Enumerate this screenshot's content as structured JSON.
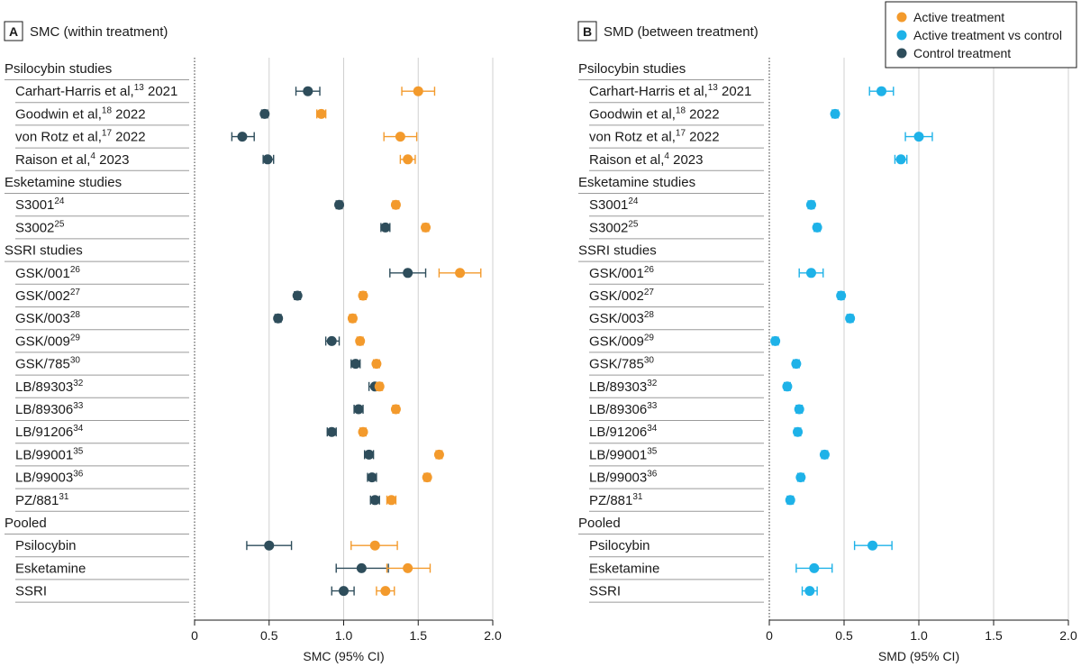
{
  "chart_data": [
    {
      "type": "forest",
      "panel": "A",
      "title": "SMC (within treatment)",
      "xlabel": "SMC (95% CI)",
      "xlim": [
        0,
        2.0
      ],
      "xticks": [
        "0",
        "0.5",
        "1.0",
        "1.5",
        "2.0"
      ],
      "grid": true,
      "series": [
        {
          "name": "Active treatment",
          "color": "#F39A2C"
        },
        {
          "name": "Control treatment",
          "color": "#2E4D5B"
        }
      ],
      "groups": [
        {
          "label": "Psilocybin studies",
          "rows": [
            {
              "label": "Carhart-Harris et al,",
              "sup": "13",
              "suffix": " 2021",
              "active": {
                "est": 1.5,
                "lo": 1.39,
                "hi": 1.61
              },
              "control": {
                "est": 0.76,
                "lo": 0.68,
                "hi": 0.84
              }
            },
            {
              "label": "Goodwin et al,",
              "sup": "18",
              "suffix": " 2022",
              "active": {
                "est": 0.85,
                "lo": 0.82,
                "hi": 0.88
              },
              "control": {
                "est": 0.47,
                "lo": 0.45,
                "hi": 0.49
              }
            },
            {
              "label": "von Rotz et al,",
              "sup": "17",
              "suffix": " 2022",
              "active": {
                "est": 1.38,
                "lo": 1.27,
                "hi": 1.49
              },
              "control": {
                "est": 0.32,
                "lo": 0.25,
                "hi": 0.4
              }
            },
            {
              "label": "Raison et al,",
              "sup": "4",
              "suffix": " 2023",
              "active": {
                "est": 1.43,
                "lo": 1.38,
                "hi": 1.48
              },
              "control": {
                "est": 0.49,
                "lo": 0.46,
                "hi": 0.53
              }
            }
          ]
        },
        {
          "label": "Esketamine studies",
          "rows": [
            {
              "label": "S3001",
              "sup": "24",
              "suffix": "",
              "active": {
                "est": 1.35,
                "lo": 1.33,
                "hi": 1.37
              },
              "control": {
                "est": 0.97,
                "lo": 0.95,
                "hi": 0.99
              }
            },
            {
              "label": "S3002",
              "sup": "25",
              "suffix": "",
              "active": {
                "est": 1.55,
                "lo": 1.53,
                "hi": 1.57
              },
              "control": {
                "est": 1.28,
                "lo": 1.25,
                "hi": 1.31
              }
            }
          ]
        },
        {
          "label": "SSRI studies",
          "rows": [
            {
              "label": "GSK/001",
              "sup": "26",
              "suffix": "",
              "active": {
                "est": 1.78,
                "lo": 1.64,
                "hi": 1.92
              },
              "control": {
                "est": 1.43,
                "lo": 1.31,
                "hi": 1.55
              }
            },
            {
              "label": "GSK/002",
              "sup": "27",
              "suffix": "",
              "active": {
                "est": 1.13,
                "lo": 1.11,
                "hi": 1.15
              },
              "control": {
                "est": 0.69,
                "lo": 0.67,
                "hi": 0.71
              }
            },
            {
              "label": "GSK/003",
              "sup": "28",
              "suffix": "",
              "active": {
                "est": 1.06,
                "lo": 1.04,
                "hi": 1.08
              },
              "control": {
                "est": 0.56,
                "lo": 0.54,
                "hi": 0.58
              }
            },
            {
              "label": "GSK/009",
              "sup": "29",
              "suffix": "",
              "active": {
                "est": 1.11,
                "lo": 1.09,
                "hi": 1.13
              },
              "control": {
                "est": 0.92,
                "lo": 0.88,
                "hi": 0.97
              }
            },
            {
              "label": "GSK/785",
              "sup": "30",
              "suffix": "",
              "active": {
                "est": 1.22,
                "lo": 1.2,
                "hi": 1.24
              },
              "control": {
                "est": 1.08,
                "lo": 1.05,
                "hi": 1.11
              }
            },
            {
              "label": "LB/89303",
              "sup": "32",
              "suffix": "",
              "active": {
                "est": 1.24,
                "lo": 1.22,
                "hi": 1.26
              },
              "control": {
                "est": 1.21,
                "lo": 1.17,
                "hi": 1.25
              }
            },
            {
              "label": "LB/89306",
              "sup": "33",
              "suffix": "",
              "active": {
                "est": 1.35,
                "lo": 1.33,
                "hi": 1.37
              },
              "control": {
                "est": 1.1,
                "lo": 1.07,
                "hi": 1.13
              }
            },
            {
              "label": "LB/91206",
              "sup": "34",
              "suffix": "",
              "active": {
                "est": 1.13,
                "lo": 1.11,
                "hi": 1.15
              },
              "control": {
                "est": 0.92,
                "lo": 0.89,
                "hi": 0.95
              }
            },
            {
              "label": "LB/99001",
              "sup": "35",
              "suffix": "",
              "active": {
                "est": 1.64,
                "lo": 1.62,
                "hi": 1.66
              },
              "control": {
                "est": 1.17,
                "lo": 1.14,
                "hi": 1.2
              }
            },
            {
              "label": "LB/99003",
              "sup": "36",
              "suffix": "",
              "active": {
                "est": 1.56,
                "lo": 1.54,
                "hi": 1.58
              },
              "control": {
                "est": 1.19,
                "lo": 1.16,
                "hi": 1.22
              }
            },
            {
              "label": "PZ/881",
              "sup": "31",
              "suffix": "",
              "active": {
                "est": 1.32,
                "lo": 1.29,
                "hi": 1.35
              },
              "control": {
                "est": 1.21,
                "lo": 1.18,
                "hi": 1.24
              }
            }
          ]
        },
        {
          "label": "Pooled",
          "rows": [
            {
              "label": "Psilocybin",
              "sup": "",
              "suffix": "",
              "active": {
                "est": 1.21,
                "lo": 1.05,
                "hi": 1.36
              },
              "control": {
                "est": 0.5,
                "lo": 0.35,
                "hi": 0.65
              }
            },
            {
              "label": "Esketamine",
              "sup": "",
              "suffix": "",
              "active": {
                "est": 1.43,
                "lo": 1.29,
                "hi": 1.58
              },
              "control": {
                "est": 1.12,
                "lo": 0.95,
                "hi": 1.3
              }
            },
            {
              "label": "SSRI",
              "sup": "",
              "suffix": "",
              "active": {
                "est": 1.28,
                "lo": 1.22,
                "hi": 1.34
              },
              "control": {
                "est": 1.0,
                "lo": 0.92,
                "hi": 1.07
              }
            }
          ]
        }
      ]
    },
    {
      "type": "forest",
      "panel": "B",
      "title": "SMD (between treatment)",
      "xlabel": "SMD (95% CI)",
      "xlim": [
        0,
        2.0
      ],
      "xticks": [
        "0",
        "0.5",
        "1.0",
        "1.5",
        "2.0"
      ],
      "grid": true,
      "series": [
        {
          "name": "Active treatment vs control",
          "color": "#1EB2E8"
        }
      ],
      "groups": [
        {
          "label": "Psilocybin studies",
          "rows": [
            {
              "label": "Carhart-Harris et al,",
              "sup": "13",
              "suffix": " 2021",
              "diff": {
                "est": 0.75,
                "lo": 0.67,
                "hi": 0.83
              }
            },
            {
              "label": "Goodwin et al,",
              "sup": "18",
              "suffix": " 2022",
              "diff": {
                "est": 0.44,
                "lo": 0.42,
                "hi": 0.46
              }
            },
            {
              "label": "von Rotz et al,",
              "sup": "17",
              "suffix": " 2022",
              "diff": {
                "est": 1.0,
                "lo": 0.91,
                "hi": 1.09
              }
            },
            {
              "label": "Raison et al,",
              "sup": "4",
              "suffix": " 2023",
              "diff": {
                "est": 0.88,
                "lo": 0.84,
                "hi": 0.92
              }
            }
          ]
        },
        {
          "label": "Esketamine studies",
          "rows": [
            {
              "label": "S3001",
              "sup": "24",
              "suffix": "",
              "diff": {
                "est": 0.28,
                "lo": 0.26,
                "hi": 0.3
              }
            },
            {
              "label": "S3002",
              "sup": "25",
              "suffix": "",
              "diff": {
                "est": 0.32,
                "lo": 0.3,
                "hi": 0.34
              }
            }
          ]
        },
        {
          "label": "SSRI studies",
          "rows": [
            {
              "label": "GSK/001",
              "sup": "26",
              "suffix": "",
              "diff": {
                "est": 0.28,
                "lo": 0.2,
                "hi": 0.36
              }
            },
            {
              "label": "GSK/002",
              "sup": "27",
              "suffix": "",
              "diff": {
                "est": 0.48,
                "lo": 0.46,
                "hi": 0.5
              }
            },
            {
              "label": "GSK/003",
              "sup": "28",
              "suffix": "",
              "diff": {
                "est": 0.54,
                "lo": 0.52,
                "hi": 0.56
              }
            },
            {
              "label": "GSK/009",
              "sup": "29",
              "suffix": "",
              "diff": {
                "est": 0.04,
                "lo": 0.02,
                "hi": 0.06
              }
            },
            {
              "label": "GSK/785",
              "sup": "30",
              "suffix": "",
              "diff": {
                "est": 0.18,
                "lo": 0.16,
                "hi": 0.2
              }
            },
            {
              "label": "LB/89303",
              "sup": "32",
              "suffix": "",
              "diff": {
                "est": 0.12,
                "lo": 0.1,
                "hi": 0.14
              }
            },
            {
              "label": "LB/89306",
              "sup": "33",
              "suffix": "",
              "diff": {
                "est": 0.2,
                "lo": 0.18,
                "hi": 0.22
              }
            },
            {
              "label": "LB/91206",
              "sup": "34",
              "suffix": "",
              "diff": {
                "est": 0.19,
                "lo": 0.17,
                "hi": 0.21
              }
            },
            {
              "label": "LB/99001",
              "sup": "35",
              "suffix": "",
              "diff": {
                "est": 0.37,
                "lo": 0.35,
                "hi": 0.39
              }
            },
            {
              "label": "LB/99003",
              "sup": "36",
              "suffix": "",
              "diff": {
                "est": 0.21,
                "lo": 0.19,
                "hi": 0.23
              }
            },
            {
              "label": "PZ/881",
              "sup": "31",
              "suffix": "",
              "diff": {
                "est": 0.14,
                "lo": 0.12,
                "hi": 0.16
              }
            }
          ]
        },
        {
          "label": "Pooled",
          "rows": [
            {
              "label": "Psilocybin",
              "sup": "",
              "suffix": "",
              "diff": {
                "est": 0.69,
                "lo": 0.57,
                "hi": 0.82
              }
            },
            {
              "label": "Esketamine",
              "sup": "",
              "suffix": "",
              "diff": {
                "est": 0.3,
                "lo": 0.18,
                "hi": 0.42
              }
            },
            {
              "label": "SSRI",
              "sup": "",
              "suffix": "",
              "diff": {
                "est": 0.27,
                "lo": 0.22,
                "hi": 0.32
              }
            }
          ]
        }
      ]
    }
  ],
  "legend": {
    "position": "top-right",
    "items": [
      {
        "label": "Active treatment",
        "color": "#F39A2C"
      },
      {
        "label": "Active treatment vs control",
        "color": "#1EB2E8"
      },
      {
        "label": "Control treatment",
        "color": "#2E4D5B"
      }
    ]
  }
}
